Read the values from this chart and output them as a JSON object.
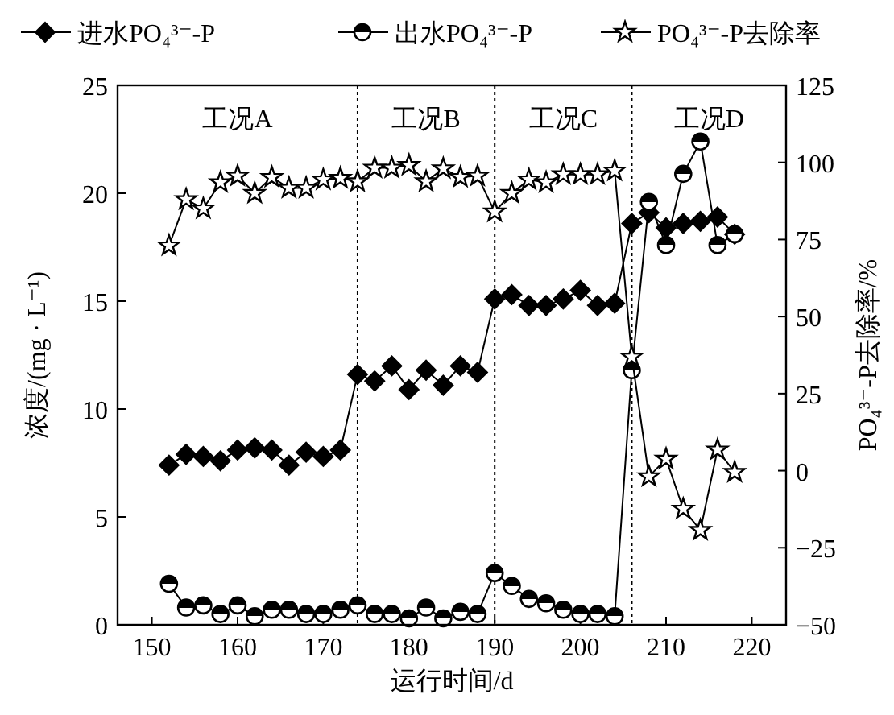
{
  "chart_data": {
    "type": "line",
    "xlabel": "运行时间/d",
    "ylabel": "浓度/(mg · L⁻¹)",
    "y2label": "PO₄³⁻-P去除率/%",
    "xlim": [
      146,
      224
    ],
    "xticks": [
      150,
      160,
      170,
      180,
      190,
      200,
      210,
      220
    ],
    "ylim": [
      0,
      25
    ],
    "yticks": [
      0,
      5,
      10,
      15,
      20,
      25
    ],
    "y2lim": [
      -50,
      125
    ],
    "y2ticks": [
      {
        "value": -50,
        "label": "−50"
      },
      {
        "value": -25,
        "label": "−25"
      },
      0,
      25,
      50,
      75,
      100,
      125
    ],
    "x": [
      152,
      154,
      156,
      158,
      160,
      162,
      164,
      166,
      168,
      170,
      172,
      174,
      176,
      178,
      180,
      182,
      184,
      186,
      188,
      190,
      192,
      194,
      196,
      198,
      200,
      202,
      204,
      206,
      208,
      210,
      212,
      214,
      216,
      218
    ],
    "series": [
      {
        "name": "进水PO₄³⁻-P",
        "color": "#000000",
        "marker": "diamond",
        "values": [
          7.4,
          7.9,
          7.8,
          7.6,
          8.1,
          8.2,
          8.1,
          7.4,
          8.0,
          7.8,
          8.1,
          11.6,
          11.3,
          12.0,
          10.9,
          11.8,
          11.1,
          12.0,
          11.7,
          15.1,
          15.3,
          14.8,
          14.8,
          15.1,
          15.5,
          14.8,
          14.9,
          18.6,
          19.1,
          18.4,
          18.6,
          18.7,
          18.9,
          18.1
        ]
      },
      {
        "name": "出水PO₄³⁻-P",
        "color": "#000000",
        "marker": "circle",
        "values": [
          1.9,
          0.8,
          0.9,
          0.5,
          0.9,
          0.4,
          0.7,
          0.7,
          0.5,
          0.5,
          0.7,
          0.9,
          0.5,
          0.5,
          0.3,
          0.8,
          0.3,
          0.6,
          0.5,
          2.4,
          1.8,
          1.2,
          1.0,
          0.7,
          0.5,
          0.5,
          0.4,
          11.8,
          19.6,
          17.6,
          20.9,
          22.4,
          17.6,
          18.1
        ]
      },
      {
        "name": "PO₄³⁻-P去除率",
        "color": "#000000",
        "marker": "star",
        "axis": "y2",
        "values": [
          73,
          88,
          85,
          93.5,
          95.6,
          90,
          95.2,
          91.7,
          91.7,
          94.4,
          94.9,
          93.8,
          98.2,
          98.2,
          99.1,
          93.8,
          98,
          95.2,
          95.6,
          84,
          90,
          94.4,
          93.5,
          96.1,
          96.1,
          96.1,
          97.3,
          36.9,
          -1.9,
          3.8,
          -12.4,
          -19.3,
          6.8,
          -0.5
        ]
      }
    ],
    "ref_lines": [
      {
        "axis": "x",
        "value": 174,
        "line_style": "dotted"
      },
      {
        "axis": "x",
        "value": 190,
        "line_style": "dotted"
      },
      {
        "axis": "x",
        "value": 206,
        "line_style": "dotted"
      }
    ],
    "annotations": [
      "工况A",
      "工况B",
      "工况C",
      "工况D"
    ],
    "legend": "top",
    "grid": false,
    "line_style": "solid"
  }
}
